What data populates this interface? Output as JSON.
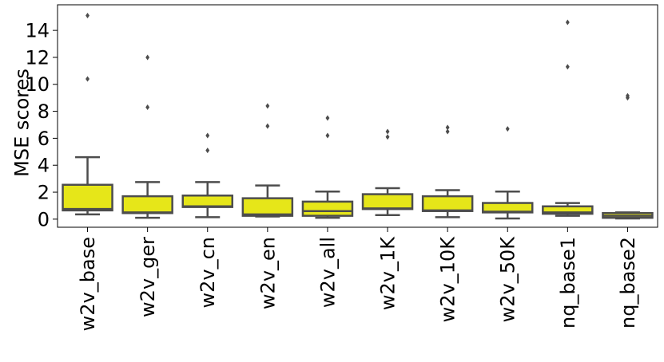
{
  "chart_data": {
    "type": "box",
    "title": "",
    "xlabel": "",
    "ylabel": "MSE scores",
    "ylim": [
      -0.6,
      15.9
    ],
    "yticks": [
      0,
      2,
      4,
      6,
      8,
      10,
      12,
      14
    ],
    "grid": false,
    "legend": "none",
    "box_color": "#e6e619",
    "line_color": "#4d4d4d",
    "categories": [
      "w2v_base",
      "w2v_ger",
      "w2v_cn",
      "w2v_en",
      "w2v_all",
      "w2v_1K",
      "w2v_10K",
      "w2v_50K",
      "nq_base1",
      "nq_base2"
    ],
    "boxes": [
      {
        "whislo": 0.35,
        "q1": 0.65,
        "med": 0.75,
        "q3": 2.55,
        "whishi": 4.6,
        "fliers": [
          10.4,
          15.1
        ]
      },
      {
        "whislo": 0.1,
        "q1": 0.45,
        "med": 0.5,
        "q3": 1.7,
        "whishi": 2.75,
        "fliers": [
          8.3,
          12.0
        ]
      },
      {
        "whislo": 0.15,
        "q1": 0.9,
        "med": 0.95,
        "q3": 1.75,
        "whishi": 2.75,
        "fliers": [
          5.1,
          6.2
        ]
      },
      {
        "whislo": 0.2,
        "q1": 0.25,
        "med": 0.35,
        "q3": 1.55,
        "whishi": 2.5,
        "fliers": [
          6.9,
          8.4
        ]
      },
      {
        "whislo": 0.1,
        "q1": 0.25,
        "med": 0.6,
        "q3": 1.3,
        "whishi": 2.05,
        "fliers": [
          6.2,
          7.5
        ]
      },
      {
        "whislo": 0.3,
        "q1": 0.75,
        "med": 0.8,
        "q3": 1.85,
        "whishi": 2.3,
        "fliers": [
          6.1,
          6.5
        ]
      },
      {
        "whislo": 0.15,
        "q1": 0.6,
        "med": 0.65,
        "q3": 1.7,
        "whishi": 2.15,
        "fliers": [
          6.5,
          6.8
        ]
      },
      {
        "whislo": 0.05,
        "q1": 0.5,
        "med": 0.55,
        "q3": 1.2,
        "whishi": 2.05,
        "fliers": [
          6.7
        ]
      },
      {
        "whislo": 0.25,
        "q1": 0.4,
        "med": 0.5,
        "q3": 0.95,
        "whishi": 1.2,
        "fliers": [
          11.3,
          14.6
        ]
      },
      {
        "whislo": 0.05,
        "q1": 0.1,
        "med": 0.25,
        "q3": 0.45,
        "whishi": 0.5,
        "fliers": [
          9.0,
          9.15
        ]
      }
    ]
  }
}
